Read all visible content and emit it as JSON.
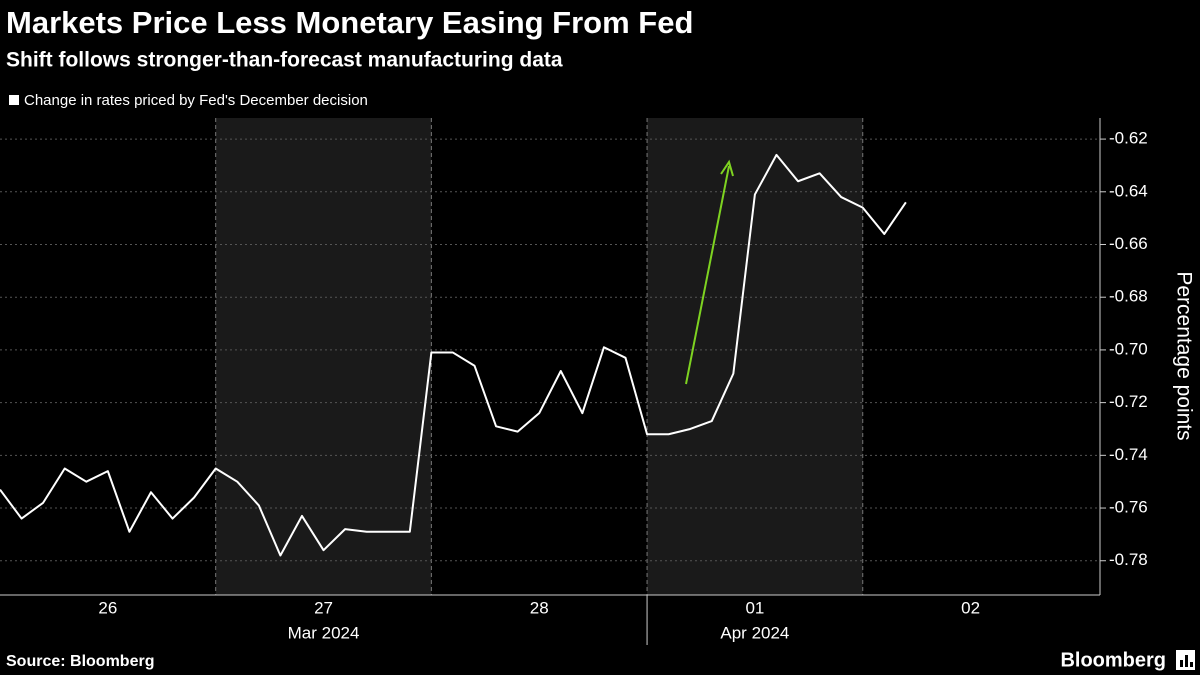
{
  "chart_data": {
    "type": "line",
    "title": "Markets Price Less Monetary Easing From Fed",
    "subtitle": "Shift follows stronger-than-forecast manufacturing data",
    "y_label": "Percentage points",
    "x": [
      0,
      0.1,
      0.2,
      0.3,
      0.4,
      0.5,
      0.6,
      0.7,
      0.8,
      0.9,
      1.0,
      1.1,
      1.2,
      1.3,
      1.4,
      1.5,
      1.6,
      1.7,
      1.8,
      1.9,
      2.0,
      2.1,
      2.2,
      2.3,
      2.4,
      2.5,
      2.6,
      2.7,
      2.8,
      2.9,
      3.0,
      3.1,
      3.2,
      3.3,
      3.4,
      3.5,
      3.6,
      3.7,
      3.8,
      3.9,
      4.0,
      4.1,
      4.2
    ],
    "series": [
      {
        "name": "Change in rates priced by Fed's December decision",
        "color": "#ffffff",
        "values": [
          -0.753,
          -0.764,
          -0.758,
          -0.745,
          -0.75,
          -0.746,
          -0.769,
          -0.754,
          -0.764,
          -0.756,
          -0.745,
          -0.75,
          -0.759,
          -0.778,
          -0.763,
          -0.776,
          -0.768,
          -0.769,
          -0.769,
          -0.769,
          -0.701,
          -0.701,
          -0.706,
          -0.729,
          -0.731,
          -0.724,
          -0.708,
          -0.724,
          -0.699,
          -0.703,
          -0.732,
          -0.732,
          -0.73,
          -0.727,
          -0.709,
          -0.641,
          -0.626,
          -0.636,
          -0.633,
          -0.642,
          -0.646,
          -0.656,
          -0.644
        ]
      }
    ],
    "xlim": [
      0,
      5.1
    ],
    "xticks": [
      {
        "value": 0.5,
        "label": "26"
      },
      {
        "value": 1.5,
        "label": "27"
      },
      {
        "value": 2.5,
        "label": "28"
      },
      {
        "value": 3.5,
        "label": "01"
      },
      {
        "value": 4.5,
        "label": "02"
      }
    ],
    "month_ticks": [
      {
        "value": 1.5,
        "label": "Mar 2024"
      },
      {
        "value": 3.5,
        "label": "Apr 2024"
      }
    ],
    "ylim": [
      -0.793,
      -0.612
    ],
    "yticks": [
      -0.62,
      -0.64,
      -0.66,
      -0.68,
      {
        "value": -0.7,
        "label": "-0.70"
      },
      -0.72,
      -0.74,
      -0.76,
      -0.78
    ],
    "grid": true,
    "shade_alternate_days": true
  },
  "source": "Source: Bloomberg",
  "brand": "Bloomberg"
}
